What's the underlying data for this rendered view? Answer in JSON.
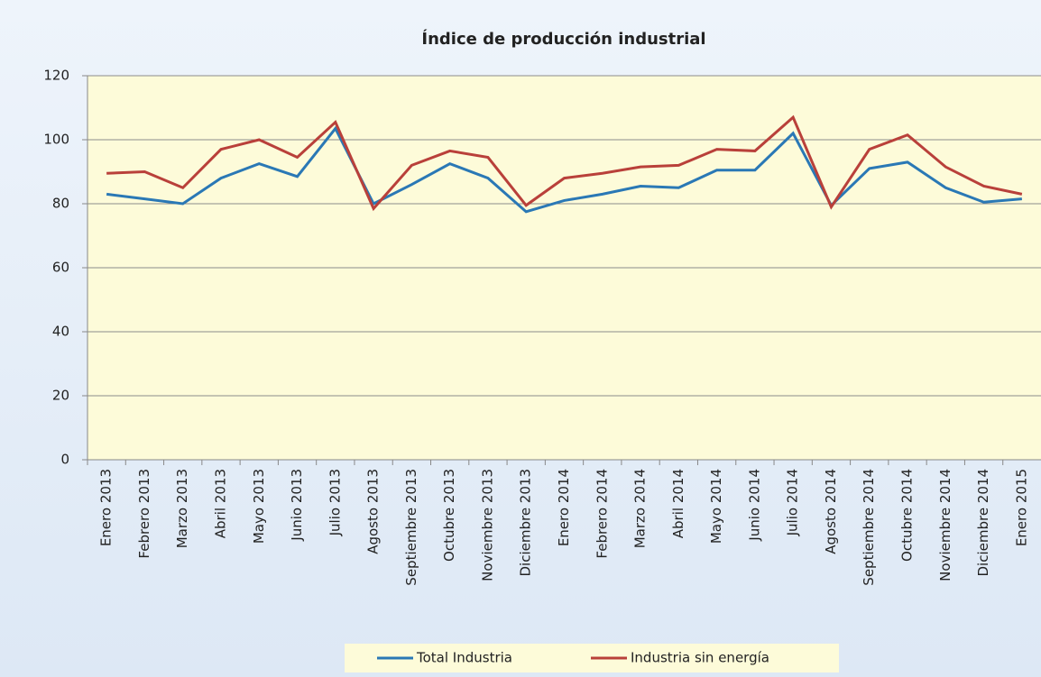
{
  "chart_data": {
    "type": "line",
    "title": "Índice de producción industrial",
    "categories": [
      "Enero 2013",
      "Febrero 2013",
      "Marzo 2013",
      "Abril 2013",
      "Mayo 2013",
      "Junio 2013",
      "Julio 2013",
      "Agosto 2013",
      "Septiembre 2013",
      "Octubre 2013",
      "Noviembre 2013",
      "Diciembre 2013",
      "Enero 2014",
      "Febrero 2014",
      "Marzo 2014",
      "Abril 2014",
      "Mayo 2014",
      "Junio 2014",
      "Julio 2014",
      "Agosto 2014",
      "Septiembre 2014",
      "Octubre 2014",
      "Noviembre 2014",
      "Diciembre 2014",
      "Enero 2015"
    ],
    "series": [
      {
        "name": "Total Industria",
        "color": "#2a78b5",
        "values": [
          83,
          81.5,
          80,
          88,
          92.5,
          88.5,
          103.5,
          80,
          86,
          92.5,
          88,
          77.5,
          81,
          83,
          85.5,
          85,
          90.5,
          90.5,
          102,
          79.5,
          91,
          93,
          85,
          80.5,
          81.5
        ]
      },
      {
        "name": "Industria sin energía",
        "color": "#b9403a",
        "values": [
          89.5,
          90,
          85,
          97,
          100,
          94.5,
          105.5,
          78.5,
          92,
          96.5,
          94.5,
          79.5,
          88,
          89.5,
          91.5,
          92,
          97,
          96.5,
          107,
          79,
          97,
          101.5,
          91.5,
          85.5,
          83
        ]
      }
    ],
    "ylim": [
      0,
      120
    ],
    "yticks": [
      0,
      20,
      40,
      60,
      80,
      100,
      120
    ],
    "grid": true,
    "legend": "bottom"
  }
}
